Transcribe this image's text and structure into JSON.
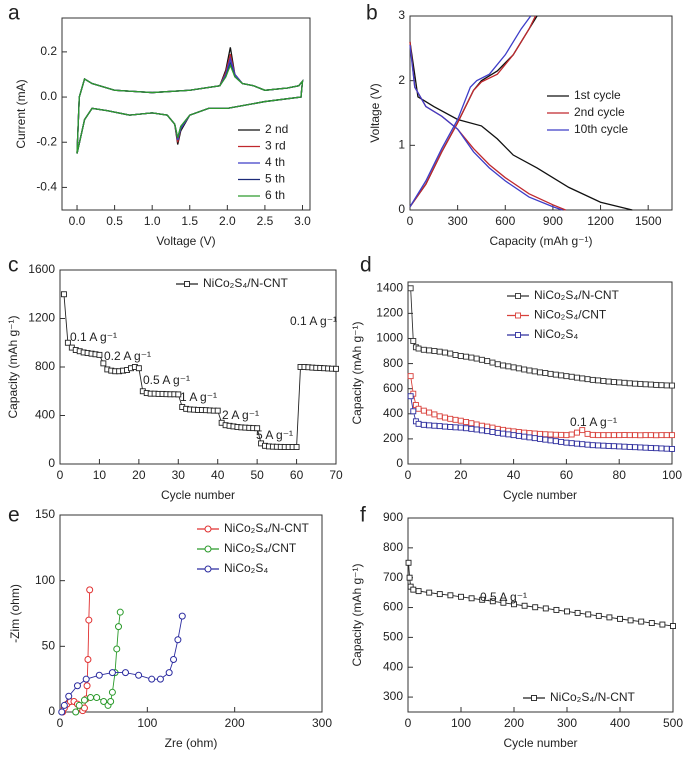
{
  "chart_data": [
    {
      "type": "line",
      "panel": "a",
      "xlabel": "Voltage (V)",
      "ylabel": "Current (mA)",
      "xlim": [
        -0.2,
        3.1
      ],
      "ylim": [
        -0.5,
        0.35
      ],
      "xticks": [
        {
          "value": 0,
          "label": "0.0"
        },
        0.5,
        {
          "value": 1,
          "label": "1.0"
        },
        1.5,
        {
          "value": 2,
          "label": "2.0"
        },
        2.5,
        {
          "value": 3,
          "label": "3.0"
        }
      ],
      "yticks": [
        -0.4,
        -0.2,
        {
          "value": 0,
          "label": "0.0"
        },
        0.2
      ],
      "legend": "lower right",
      "x": [
        0.0,
        0.03,
        0.1,
        0.2,
        0.5,
        1.0,
        1.5,
        1.9,
        1.98,
        2.04,
        2.1,
        2.2,
        2.35,
        2.5,
        2.8,
        2.95,
        3.0,
        2.98,
        2.5,
        2.0,
        1.75,
        1.5,
        1.38,
        1.34,
        1.3,
        1.2,
        1.0,
        0.7,
        0.4,
        0.2,
        0.1,
        0.0
      ],
      "series": [
        {
          "name": "2 nd",
          "color": "#111111",
          "values": [
            -0.25,
            0.0,
            0.08,
            0.06,
            0.03,
            0.02,
            0.03,
            0.05,
            0.12,
            0.22,
            0.1,
            0.06,
            0.05,
            0.03,
            0.04,
            0.05,
            0.07,
            0.0,
            -0.02,
            -0.05,
            -0.05,
            -0.08,
            -0.15,
            -0.21,
            -0.12,
            -0.08,
            -0.07,
            -0.08,
            -0.06,
            -0.05,
            -0.1,
            -0.25
          ]
        },
        {
          "name": "3 rd",
          "color": "#c0282d",
          "values": [
            -0.25,
            0.0,
            0.08,
            0.06,
            0.03,
            0.02,
            0.03,
            0.05,
            0.11,
            0.19,
            0.1,
            0.06,
            0.05,
            0.03,
            0.04,
            0.05,
            0.07,
            0.0,
            -0.02,
            -0.05,
            -0.05,
            -0.08,
            -0.14,
            -0.2,
            -0.12,
            -0.08,
            -0.07,
            -0.08,
            -0.06,
            -0.05,
            -0.1,
            -0.25
          ]
        },
        {
          "name": "4 th",
          "color": "#3d3dc8",
          "values": [
            -0.25,
            0.0,
            0.08,
            0.06,
            0.03,
            0.02,
            0.03,
            0.05,
            0.1,
            0.17,
            0.1,
            0.06,
            0.05,
            0.03,
            0.04,
            0.05,
            0.07,
            0.0,
            -0.02,
            -0.05,
            -0.05,
            -0.08,
            -0.14,
            -0.19,
            -0.12,
            -0.08,
            -0.07,
            -0.08,
            -0.06,
            -0.05,
            -0.1,
            -0.25
          ]
        },
        {
          "name": "5 th",
          "color": "#1c2a78",
          "values": [
            -0.25,
            0.0,
            0.08,
            0.06,
            0.03,
            0.02,
            0.03,
            0.05,
            0.09,
            0.15,
            0.09,
            0.06,
            0.05,
            0.03,
            0.04,
            0.05,
            0.07,
            0.0,
            -0.02,
            -0.05,
            -0.05,
            -0.08,
            -0.13,
            -0.18,
            -0.12,
            -0.08,
            -0.07,
            -0.08,
            -0.06,
            -0.05,
            -0.1,
            -0.25
          ]
        },
        {
          "name": "6 th",
          "color": "#2e9a2e",
          "values": [
            -0.25,
            0.0,
            0.08,
            0.06,
            0.03,
            0.02,
            0.03,
            0.05,
            0.09,
            0.14,
            0.09,
            0.06,
            0.05,
            0.03,
            0.04,
            0.05,
            0.07,
            0.0,
            -0.02,
            -0.05,
            -0.05,
            -0.08,
            -0.13,
            -0.18,
            -0.12,
            -0.08,
            -0.07,
            -0.08,
            -0.06,
            -0.05,
            -0.1,
            -0.25
          ]
        }
      ]
    },
    {
      "type": "line",
      "panel": "b",
      "xlabel": "Capacity (mAh g⁻¹)",
      "ylabel": "Voltage (V)",
      "xlim": [
        0,
        1650
      ],
      "ylim": [
        0,
        3
      ],
      "xticks": [
        0,
        300,
        600,
        900,
        1200,
        1500
      ],
      "yticks": [
        0,
        1,
        2,
        3
      ],
      "legend": "center right",
      "series": [
        {
          "name": "1st cycle",
          "color": "#111111",
          "x": [
            0,
            50,
            150,
            300,
            450,
            550,
            650,
            800,
            1000,
            1200,
            1400,
            null,
            0,
            100,
            200,
            300,
            400,
            450,
            550,
            650,
            750,
            800
          ],
          "values": [
            2.6,
            1.75,
            1.6,
            1.4,
            1.3,
            1.1,
            0.85,
            0.65,
            0.35,
            0.12,
            0.0,
            null,
            0.05,
            0.4,
            0.9,
            1.35,
            1.85,
            2.0,
            2.15,
            2.4,
            2.8,
            3.0
          ]
        },
        {
          "name": "2nd cycle",
          "color": "#c0282d",
          "x": [
            0,
            30,
            100,
            200,
            300,
            400,
            500,
            600,
            750,
            900,
            980,
            null,
            0,
            100,
            200,
            300,
            400,
            450,
            550,
            650,
            750,
            790
          ],
          "values": [
            2.6,
            1.9,
            1.6,
            1.45,
            1.25,
            0.95,
            0.7,
            0.5,
            0.25,
            0.08,
            0.0,
            null,
            0.05,
            0.4,
            0.9,
            1.35,
            1.85,
            1.98,
            2.1,
            2.4,
            2.8,
            3.0
          ]
        },
        {
          "name": "10th cycle",
          "color": "#3d3dc8",
          "x": [
            0,
            30,
            100,
            200,
            300,
            400,
            500,
            600,
            750,
            900,
            960,
            null,
            0,
            100,
            200,
            300,
            380,
            420,
            500,
            600,
            700,
            760
          ],
          "values": [
            2.55,
            1.9,
            1.6,
            1.45,
            1.25,
            0.9,
            0.65,
            0.45,
            0.2,
            0.05,
            0.0,
            null,
            0.05,
            0.45,
            0.95,
            1.4,
            1.9,
            2.0,
            2.1,
            2.4,
            2.8,
            3.0
          ]
        }
      ]
    },
    {
      "type": "line",
      "panel": "c",
      "xlabel": "Cycle number",
      "ylabel": "Capacity (mAh g⁻¹)",
      "xlim": [
        0,
        70
      ],
      "ylim": [
        0,
        1600
      ],
      "xticks": [
        0,
        10,
        20,
        30,
        40,
        50,
        60,
        70
      ],
      "yticks": [
        0,
        400,
        800,
        1200,
        1600
      ],
      "legend": "upper right",
      "marker": "square",
      "annotations": [
        "0.1 A g⁻¹",
        "0.2 A g⁻¹",
        "0.5 A g⁻¹",
        "1 A g⁻¹",
        "2 A g⁻¹",
        "5 A g⁻¹",
        "0.1 A g⁻¹"
      ],
      "x": [
        1,
        2,
        3,
        4,
        5,
        6,
        7,
        8,
        9,
        10,
        11,
        12,
        13,
        14,
        15,
        16,
        17,
        18,
        19,
        20,
        21,
        22,
        23,
        24,
        25,
        26,
        27,
        28,
        29,
        30,
        31,
        32,
        33,
        34,
        35,
        36,
        37,
        38,
        39,
        40,
        41,
        42,
        43,
        44,
        45,
        46,
        47,
        48,
        49,
        50,
        51,
        52,
        53,
        54,
        55,
        56,
        57,
        58,
        59,
        60,
        61,
        62,
        63,
        64,
        65,
        66,
        67,
        68,
        69,
        70
      ],
      "series": [
        {
          "name": "NiCo₂S₄/N-CNT",
          "color": "#222222",
          "values": [
            1400,
            1000,
            960,
            940,
            930,
            920,
            915,
            910,
            905,
            900,
            830,
            780,
            770,
            765,
            765,
            770,
            775,
            790,
            800,
            790,
            600,
            585,
            580,
            580,
            578,
            578,
            576,
            575,
            575,
            574,
            470,
            455,
            450,
            448,
            446,
            445,
            444,
            442,
            440,
            440,
            340,
            320,
            315,
            310,
            305,
            302,
            300,
            298,
            296,
            295,
            170,
            150,
            145,
            143,
            142,
            141,
            140,
            140,
            140,
            140,
            800,
            800,
            798,
            795,
            793,
            792,
            790,
            788,
            786,
            785
          ]
        }
      ]
    },
    {
      "type": "line",
      "panel": "d",
      "xlabel": "Cycle number",
      "ylabel": "Capacity (mAh g⁻¹)",
      "xlim": [
        0,
        100
      ],
      "ylim": [
        0,
        1450
      ],
      "xticks": [
        0,
        20,
        40,
        60,
        80,
        100
      ],
      "yticks": [
        0,
        200,
        400,
        600,
        800,
        1000,
        1200,
        1400
      ],
      "legend": "upper right",
      "marker": "square",
      "annotations": [
        "0.1 A g⁻¹"
      ],
      "x": [
        1,
        2,
        3,
        4,
        6,
        8,
        10,
        12,
        14,
        16,
        18,
        20,
        22,
        24,
        26,
        28,
        30,
        32,
        34,
        36,
        38,
        40,
        42,
        44,
        46,
        48,
        50,
        52,
        54,
        56,
        58,
        60,
        62,
        64,
        66,
        68,
        70,
        72,
        74,
        76,
        78,
        80,
        82,
        84,
        86,
        88,
        90,
        92,
        94,
        96,
        98,
        100
      ],
      "series": [
        {
          "name": "NiCo₂S₄/N-CNT",
          "color": "#333333",
          "values": [
            1400,
            980,
            930,
            920,
            910,
            905,
            900,
            895,
            888,
            880,
            868,
            860,
            855,
            848,
            840,
            830,
            820,
            808,
            795,
            785,
            778,
            770,
            762,
            753,
            745,
            738,
            730,
            725,
            718,
            712,
            706,
            700,
            695,
            688,
            682,
            676,
            670,
            666,
            661,
            657,
            653,
            650,
            647,
            643,
            640,
            638,
            635,
            633,
            630,
            628,
            626,
            625
          ]
        },
        {
          "name": "NiCo₂S₄/CNT",
          "color": "#d9413b",
          "values": [
            700,
            560,
            470,
            440,
            425,
            410,
            395,
            380,
            370,
            360,
            352,
            345,
            335,
            325,
            315,
            305,
            298,
            290,
            280,
            272,
            265,
            260,
            255,
            250,
            246,
            243,
            240,
            237,
            235,
            233,
            232,
            230,
            235,
            250,
            270,
            240,
            232,
            230,
            230,
            230,
            230,
            230,
            231,
            230,
            230,
            229,
            230,
            230,
            229,
            230,
            230,
            230
          ]
        },
        {
          "name": "NiCo₂S₄",
          "color": "#2e2e9e",
          "values": [
            540,
            420,
            340,
            320,
            312,
            308,
            305,
            302,
            298,
            295,
            292,
            290,
            285,
            280,
            275,
            268,
            262,
            255,
            248,
            242,
            236,
            230,
            224,
            218,
            212,
            206,
            200,
            194,
            188,
            182,
            176,
            170,
            166,
            162,
            158,
            154,
            150,
            148,
            146,
            144,
            142,
            140,
            138,
            136,
            134,
            132,
            130,
            128,
            126,
            124,
            122,
            120
          ]
        }
      ]
    },
    {
      "type": "line",
      "panel": "e",
      "xlabel": "Zre (ohm)",
      "ylabel": "-Zim (ohm)",
      "xlim": [
        0,
        300
      ],
      "ylim": [
        0,
        150
      ],
      "xticks": [
        0,
        100,
        200,
        300
      ],
      "yticks": [
        0,
        50,
        100,
        150
      ],
      "legend": "upper right",
      "legend_text": "colored",
      "marker": "circle",
      "series": [
        {
          "name": "NiCo₂S₄/N-CNT",
          "color": "#e03030",
          "x": [
            3,
            5,
            8,
            12,
            16,
            20,
            23,
            26,
            28,
            30,
            31,
            32,
            33,
            34
          ],
          "values": [
            0,
            3,
            6,
            8,
            8,
            6,
            3,
            1,
            3,
            10,
            20,
            40,
            70,
            93
          ]
        },
        {
          "name": "NiCo₂S₄/CNT",
          "color": "#2a9a2a",
          "x": [
            18,
            22,
            28,
            35,
            42,
            50,
            55,
            58,
            60,
            63,
            65,
            67,
            69
          ],
          "values": [
            0,
            5,
            9,
            11,
            11,
            8,
            5,
            8,
            15,
            30,
            48,
            65,
            76
          ]
        },
        {
          "name": "NiCo₂S₄",
          "color": "#2c2ca0",
          "x": [
            2,
            5,
            10,
            20,
            30,
            45,
            60,
            75,
            90,
            105,
            115,
            125,
            130,
            135,
            140
          ],
          "values": [
            0,
            5,
            12,
            20,
            25,
            28,
            30,
            30,
            28,
            25,
            25,
            30,
            40,
            55,
            73
          ]
        }
      ]
    },
    {
      "type": "line",
      "panel": "f",
      "xlabel": "Cycle number",
      "ylabel": "Capacity (mAh g⁻¹)",
      "xlim": [
        0,
        500
      ],
      "ylim": [
        250,
        900
      ],
      "xticks": [
        0,
        100,
        200,
        300,
        400,
        500
      ],
      "yticks": [
        300,
        400,
        500,
        600,
        700,
        800,
        900
      ],
      "legend": "lower right",
      "marker": "square",
      "annotations": [
        "0.5 A g⁻¹"
      ],
      "x": [
        1,
        3,
        5,
        10,
        20,
        40,
        60,
        80,
        100,
        120,
        140,
        160,
        180,
        200,
        220,
        240,
        260,
        280,
        300,
        320,
        340,
        360,
        380,
        400,
        420,
        440,
        460,
        480,
        500
      ],
      "series": [
        {
          "name": "NiCo₂S₄/N-CNT",
          "color": "#222222",
          "values": [
            750,
            700,
            670,
            660,
            655,
            650,
            645,
            641,
            636,
            631,
            626,
            621,
            616,
            611,
            606,
            601,
            597,
            592,
            587,
            582,
            577,
            572,
            567,
            562,
            557,
            553,
            548,
            543,
            538
          ]
        }
      ]
    }
  ]
}
